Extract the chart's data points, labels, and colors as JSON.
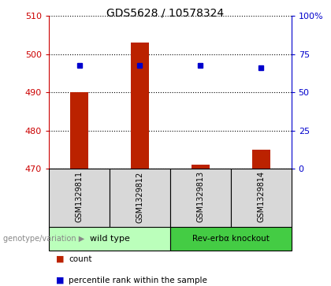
{
  "title": "GDS5628 / 10578324",
  "samples": [
    "GSM1329811",
    "GSM1329812",
    "GSM1329813",
    "GSM1329814"
  ],
  "bar_base": 470,
  "bar_tops": [
    490,
    503,
    471,
    475
  ],
  "percentile_values": [
    497,
    497,
    497,
    496.5
  ],
  "ylim": [
    470,
    510
  ],
  "y_ticks": [
    470,
    480,
    490,
    500,
    510
  ],
  "right_y_ticks": [
    0,
    25,
    50,
    75,
    100
  ],
  "right_ylim": [
    0,
    100
  ],
  "bar_color": "#bb2200",
  "dot_color": "#0000cc",
  "group1_label": "wild type",
  "group2_label": "Rev-erbα knockout",
  "group1_indices": [
    0,
    1
  ],
  "group2_indices": [
    2,
    3
  ],
  "group1_color": "#bbffbb",
  "group2_color": "#44cc44",
  "xlabel_genotype": "genotype/variation",
  "legend_count_label": "count",
  "legend_percentile_label": "percentile rank within the sample",
  "left_color": "#cc0000",
  "right_color": "#0000cc",
  "sample_bg_color": "#d8d8d8",
  "plot_bg": "#ffffff",
  "bar_width": 0.3
}
